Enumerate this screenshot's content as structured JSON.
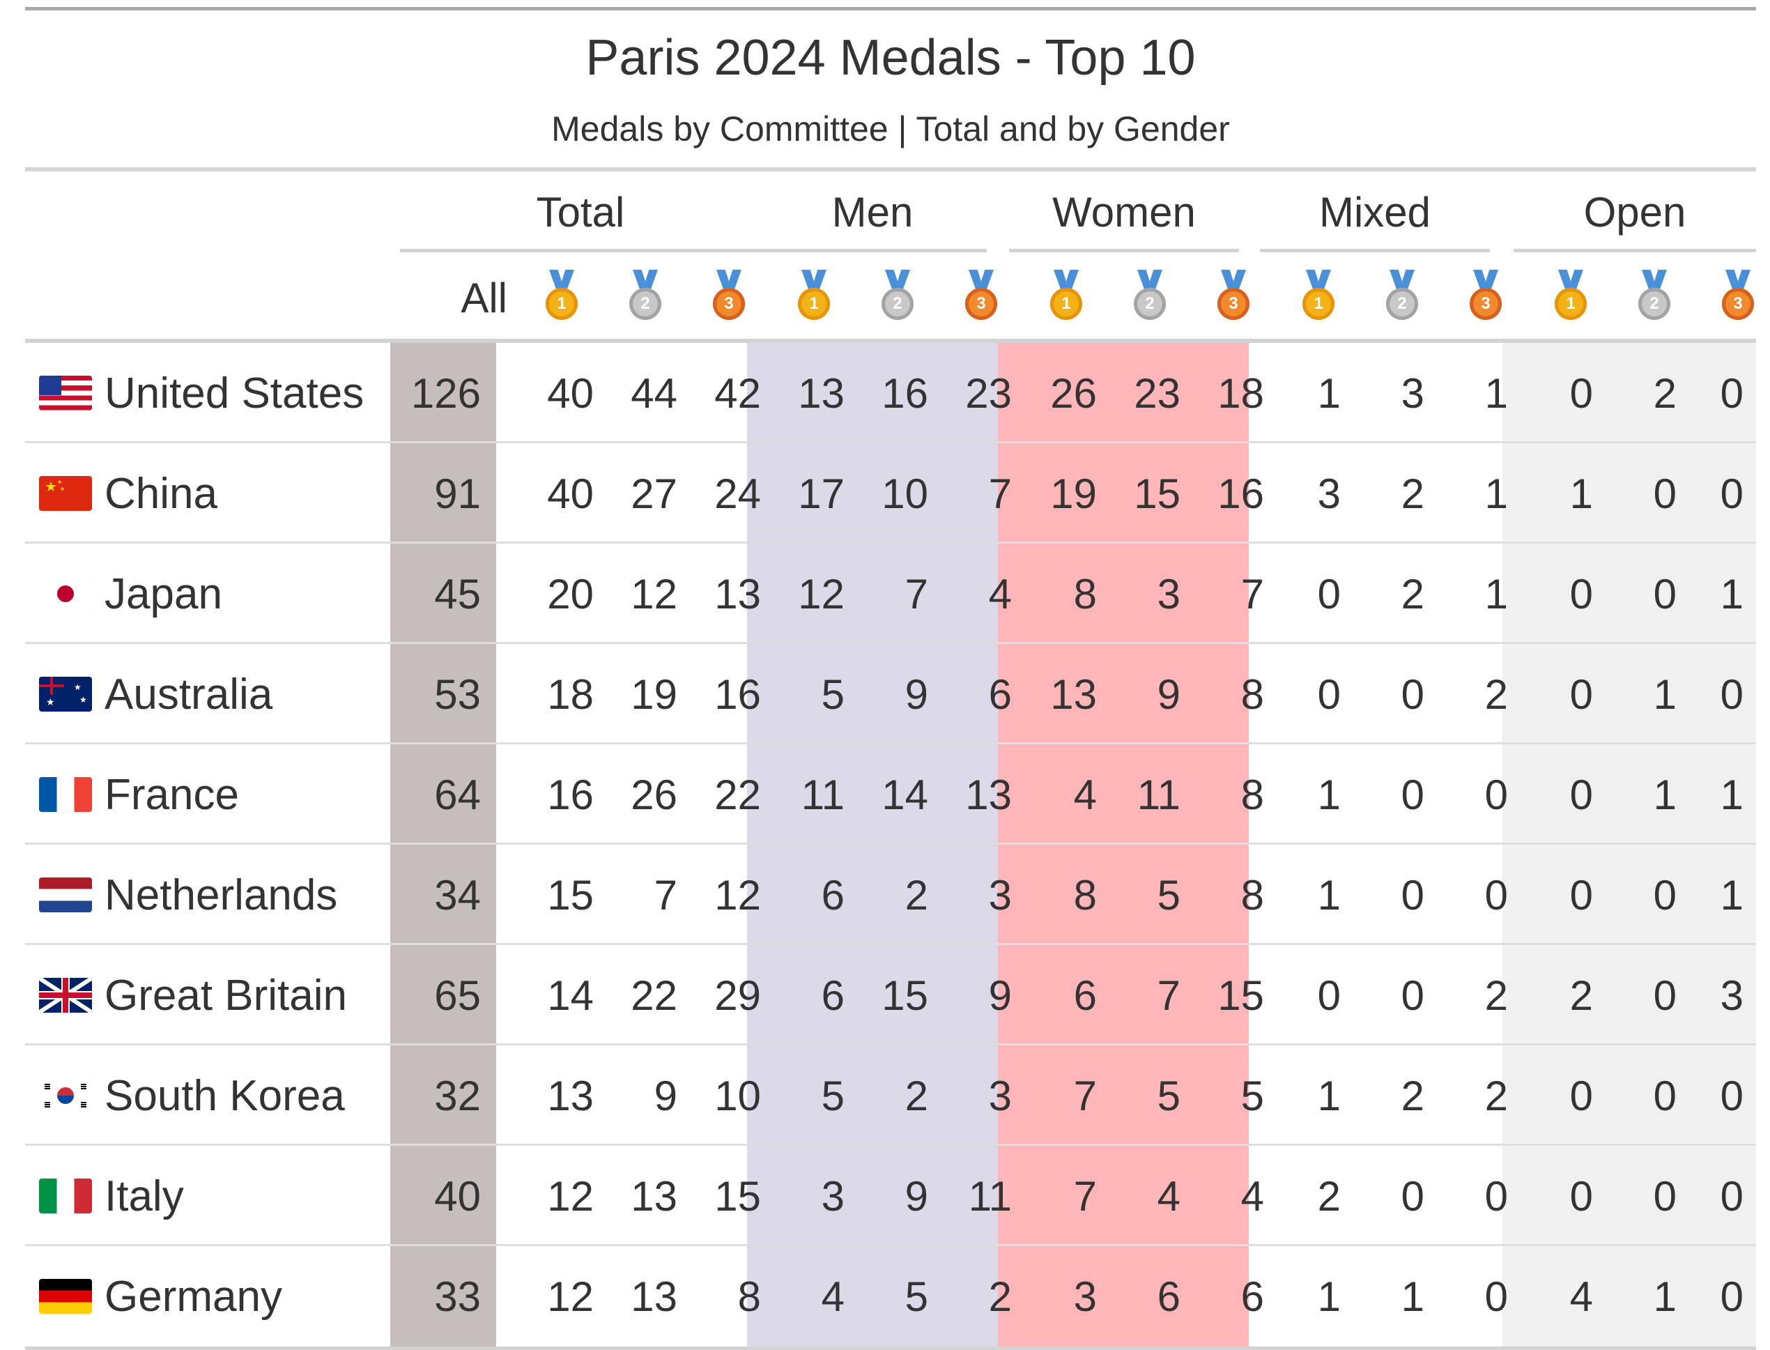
{
  "title": "Paris 2024 Medals - Top 10",
  "subtitle": "Medals by Committee | Total and by Gender",
  "spanners": [
    "Total",
    "Men",
    "Women",
    "Mixed",
    "Open"
  ],
  "col_all_label": "All",
  "medal_icons": [
    "gold-medal-icon",
    "silver-medal-icon",
    "bronze-medal-icon"
  ],
  "colors": {
    "all_column": "#c5bebd",
    "men_band": "#dcd9e8",
    "women_band": "#ffb6b9",
    "open_band": "#f0f0f0"
  },
  "rows": [
    {
      "country": "United States",
      "flag": "us-flag-icon",
      "cells": [
        "126",
        "40",
        "44",
        "42",
        "13",
        "16",
        "23",
        "26",
        "23",
        "18",
        "1",
        "3",
        "1",
        "0",
        "2",
        "0"
      ]
    },
    {
      "country": "China",
      "flag": "china-flag-icon",
      "cells": [
        "91",
        "40",
        "27",
        "24",
        "17",
        "10",
        "7",
        "19",
        "15",
        "16",
        "3",
        "2",
        "1",
        "1",
        "0",
        "0"
      ]
    },
    {
      "country": "Japan",
      "flag": "japan-flag-icon",
      "cells": [
        "45",
        "20",
        "12",
        "13",
        "12",
        "7",
        "4",
        "8",
        "3",
        "7",
        "0",
        "2",
        "1",
        "0",
        "0",
        "1"
      ]
    },
    {
      "country": "Australia",
      "flag": "australia-flag-icon",
      "cells": [
        "53",
        "18",
        "19",
        "16",
        "5",
        "9",
        "6",
        "13",
        "9",
        "8",
        "0",
        "0",
        "2",
        "0",
        "1",
        "0"
      ]
    },
    {
      "country": "France",
      "flag": "france-flag-icon",
      "cells": [
        "64",
        "16",
        "26",
        "22",
        "11",
        "14",
        "13",
        "4",
        "11",
        "8",
        "1",
        "0",
        "0",
        "0",
        "1",
        "1"
      ]
    },
    {
      "country": "Netherlands",
      "flag": "netherlands-flag-icon",
      "cells": [
        "34",
        "15",
        "7",
        "12",
        "6",
        "2",
        "3",
        "8",
        "5",
        "8",
        "1",
        "0",
        "0",
        "0",
        "0",
        "1"
      ]
    },
    {
      "country": "Great Britain",
      "flag": "great-britain-flag-icon",
      "cells": [
        "65",
        "14",
        "22",
        "29",
        "6",
        "15",
        "9",
        "6",
        "7",
        "15",
        "0",
        "0",
        "2",
        "2",
        "0",
        "3"
      ]
    },
    {
      "country": "South Korea",
      "flag": "south-korea-flag-icon",
      "cells": [
        "32",
        "13",
        "9",
        "10",
        "5",
        "2",
        "3",
        "7",
        "5",
        "5",
        "1",
        "2",
        "2",
        "0",
        "0",
        "0"
      ]
    },
    {
      "country": "Italy",
      "flag": "italy-flag-icon",
      "cells": [
        "40",
        "12",
        "13",
        "15",
        "3",
        "9",
        "11",
        "7",
        "4",
        "4",
        "2",
        "0",
        "0",
        "0",
        "0",
        "0"
      ]
    },
    {
      "country": "Germany",
      "flag": "germany-flag-icon",
      "cells": [
        "33",
        "12",
        "13",
        "8",
        "4",
        "5",
        "2",
        "3",
        "6",
        "6",
        "1",
        "1",
        "0",
        "4",
        "1",
        "0"
      ]
    }
  ]
}
